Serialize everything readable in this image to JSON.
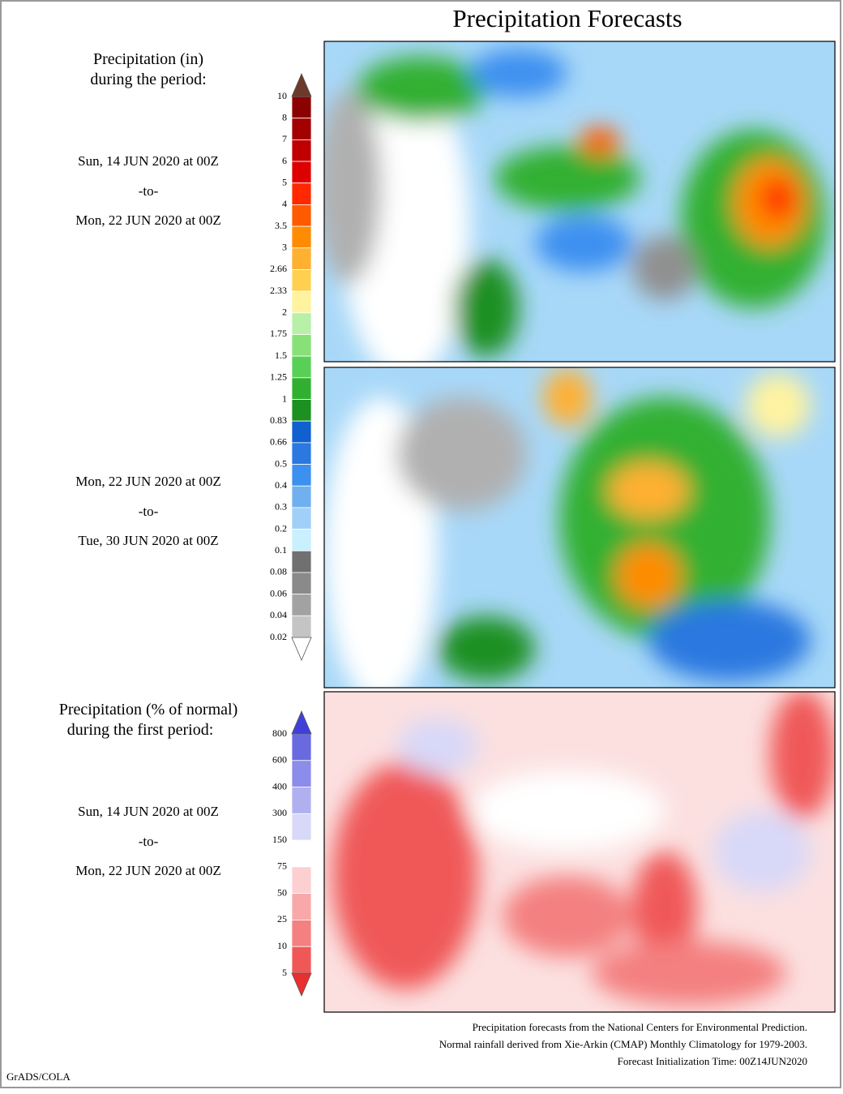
{
  "title": "Precipitation Forecasts",
  "legends": [
    {
      "heading": [
        "Precipitation (in)",
        "during the period:"
      ],
      "labels": [
        "10",
        "8",
        "7",
        "6",
        "5",
        "4",
        "3.5",
        "3",
        "2.66",
        "2.33",
        "2",
        "1.75",
        "1.5",
        "1.25",
        "1",
        "0.83",
        "0.66",
        "0.5",
        "0.4",
        "0.3",
        "0.2",
        "0.1",
        "0.08",
        "0.06",
        "0.04",
        "0.02"
      ],
      "colors": [
        "#8b0000",
        "#a30000",
        "#c00000",
        "#de0000",
        "#ff2800",
        "#ff5a00",
        "#ff8c00",
        "#ffb030",
        "#ffd050",
        "#fff3a0",
        "#b8f0a8",
        "#88e078",
        "#58d058",
        "#30b030",
        "#1c9020",
        "#1060d0",
        "#2a78e0",
        "#3c90f0",
        "#70b0f0",
        "#a0d0f8",
        "#c8f0ff",
        "#707070",
        "#8a8a8a",
        "#a2a2a2",
        "#c4c4c4"
      ],
      "arrow_colors": [
        "#6b3a2a",
        "#ffffff"
      ]
    },
    {
      "heading": [
        "Precipitation (% of normal)",
        "during the first period:"
      ],
      "labels": [
        "800",
        "600",
        "400",
        "300",
        "150",
        "75",
        "50",
        "25",
        "10",
        "5"
      ],
      "colors": [
        "#6a6ae0",
        "#8c8cea",
        "#b0b0f0",
        "#d8d8f8",
        "#ffffff",
        "#fcd0d0",
        "#f8a8a8",
        "#f48080",
        "#f05858"
      ],
      "arrow_colors": [
        "#4040d8",
        "#e83030"
      ]
    }
  ],
  "periods": [
    {
      "start": "Sun, 14 JUN 2020 at 00Z",
      "to": "-to-",
      "end": "Mon, 22 JUN 2020 at 00Z"
    },
    {
      "start": "Mon, 22 JUN 2020 at 00Z",
      "to": "-to-",
      "end": "Tue, 30 JUN 2020 at 00Z"
    },
    {
      "start": "Sun, 14 JUN 2020 at 00Z",
      "to": "-to-",
      "end": "Mon, 22 JUN 2020 at 00Z"
    }
  ],
  "footer": [
    "Precipitation forecasts from the National Centers for Environmental Prediction.",
    "Normal rainfall derived from Xie-Arkin (CMAP) Monthly Climatology for 1979-2003.",
    "Forecast Initialization Time: 00Z14JUN2020"
  ],
  "credit": "GrADS/COLA"
}
